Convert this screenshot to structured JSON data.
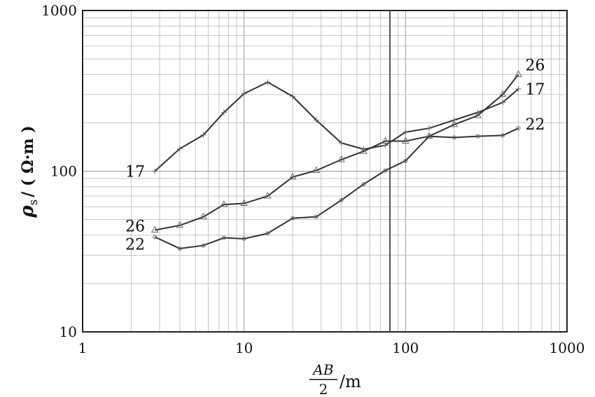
{
  "chart_data": {
    "type": "line",
    "x_scale": "log",
    "y_scale": "log",
    "xlim": [
      1,
      1000
    ],
    "ylim": [
      10,
      1000
    ],
    "grid": true,
    "x_ticks": [
      "1",
      "10",
      "100",
      "1000"
    ],
    "y_ticks": [
      "10",
      "100",
      "1000"
    ],
    "xlabel": {
      "numerator": "AB",
      "denominator": "2",
      "unit": "/m"
    },
    "ylabel": {
      "symbol": "ρ",
      "subscript": "s",
      "unit": "/ ( Ω·m )"
    },
    "series": [
      {
        "name": "17",
        "marker": "plus",
        "x": [
          2.8,
          4,
          5.6,
          7.5,
          10,
          14,
          20,
          28,
          40,
          55,
          75,
          100,
          140,
          200,
          280,
          400,
          500
        ],
        "y": [
          100,
          138,
          168,
          232,
          304,
          358,
          292,
          208,
          150,
          137,
          145,
          175,
          185,
          208,
          232,
          268,
          325
        ]
      },
      {
        "name": "26",
        "marker": "triangle",
        "x": [
          2.8,
          4,
          5.6,
          7.5,
          10,
          14,
          20,
          28,
          40,
          55,
          75,
          100,
          140,
          200,
          280,
          400,
          500
        ],
        "y": [
          43,
          46,
          52,
          62,
          63,
          70,
          92,
          101,
          118,
          133,
          154,
          154,
          165,
          195,
          222,
          300,
          400
        ]
      },
      {
        "name": "22",
        "marker": "circle",
        "x": [
          2.8,
          4,
          5.6,
          7.5,
          10,
          14,
          20,
          28,
          40,
          55,
          75,
          100,
          140,
          200,
          280,
          400,
          500
        ],
        "y": [
          39,
          33,
          34.5,
          38.5,
          38,
          41,
          51,
          52,
          66,
          83,
          101,
          116,
          165,
          162,
          165,
          167,
          185
        ]
      }
    ]
  }
}
